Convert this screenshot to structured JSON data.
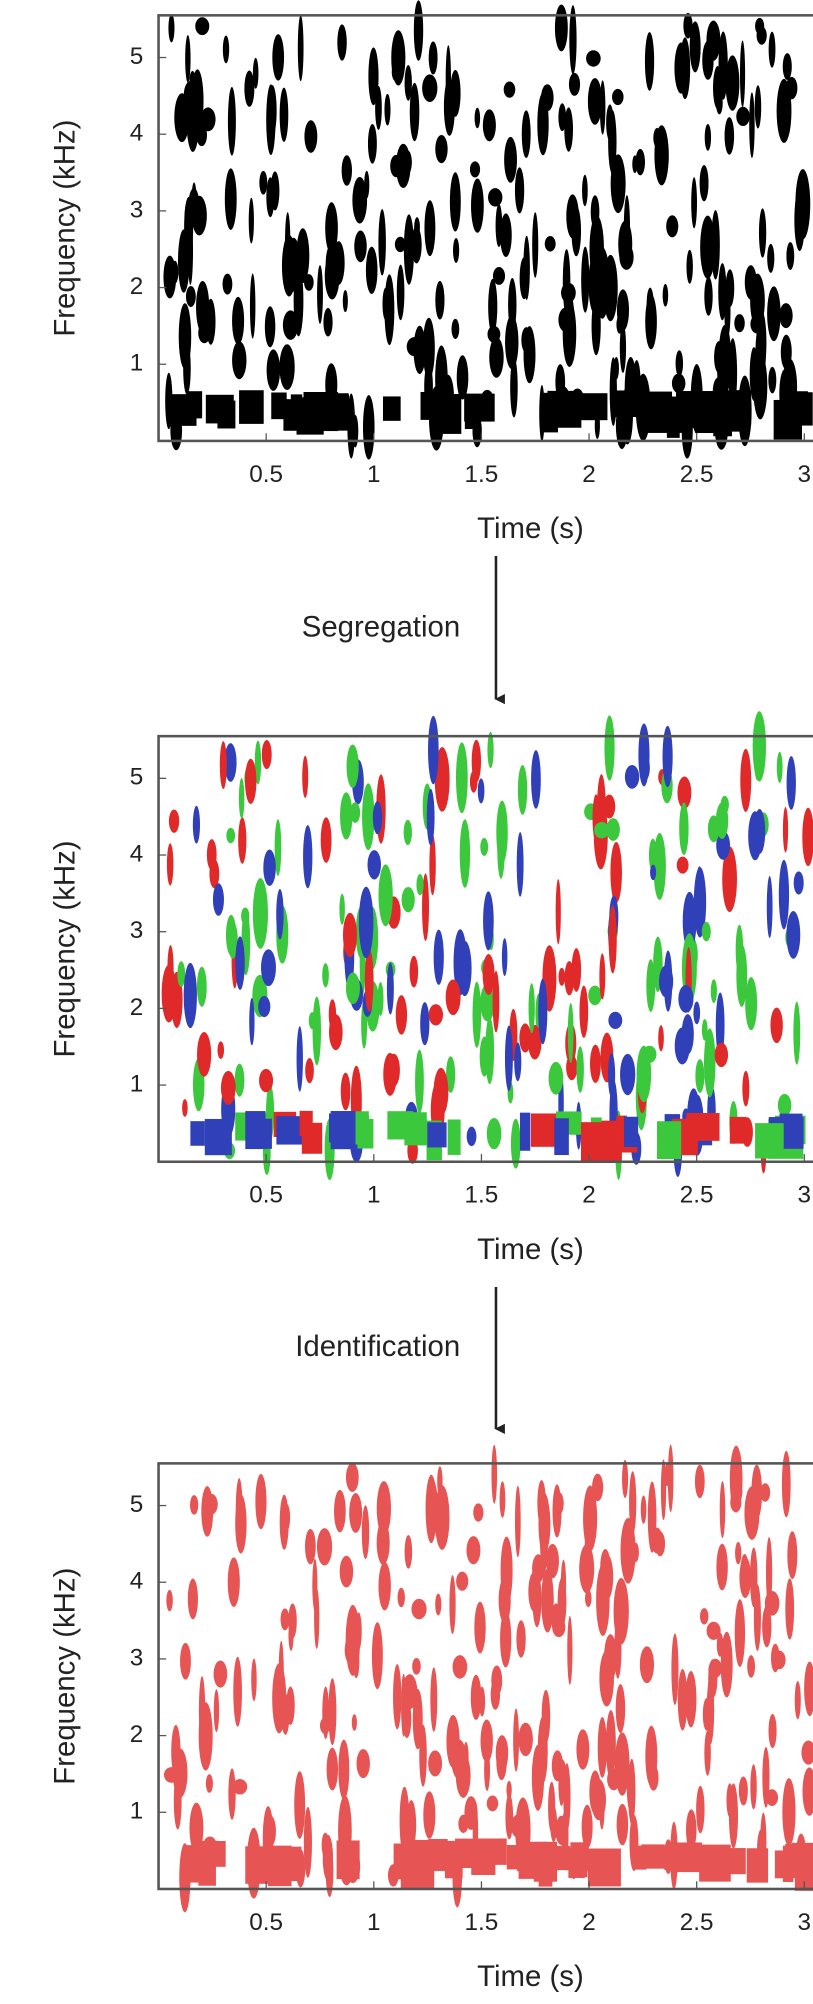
{
  "chart_data": [
    {
      "type": "spectrogram",
      "xlabel": "Time (s)",
      "ylabel": "Frequency (kHz)",
      "xlim": [
        0,
        3.04
      ],
      "ylim": [
        0,
        5.55
      ],
      "xticks": [
        0.5,
        1,
        1.5,
        2,
        2.5,
        3
      ],
      "yticks": [
        1,
        2,
        3,
        4,
        5
      ],
      "colors": [
        "#000000"
      ]
    },
    {
      "type": "spectrogram",
      "xlabel": "Time (s)",
      "ylabel": "Frequency (kHz)",
      "xlim": [
        0,
        3.04
      ],
      "ylim": [
        0,
        5.55
      ],
      "xticks": [
        0.5,
        1,
        1.5,
        2,
        2.5,
        3
      ],
      "yticks": [
        1,
        2,
        3,
        4,
        5
      ],
      "colors": [
        "#3040b8",
        "#e02a2a",
        "#3cc83c"
      ]
    },
    {
      "type": "spectrogram",
      "xlabel": "Time (s)",
      "ylabel": "Frequency (kHz)",
      "xlim": [
        0,
        3.04
      ],
      "ylim": [
        0,
        5.55
      ],
      "xticks": [
        0.5,
        1,
        1.5,
        2,
        2.5,
        3
      ],
      "yticks": [
        1,
        2,
        3,
        4,
        5
      ],
      "colors": [
        "#e02a2a"
      ]
    }
  ],
  "annotations": [
    "Segregation",
    "Identification"
  ]
}
